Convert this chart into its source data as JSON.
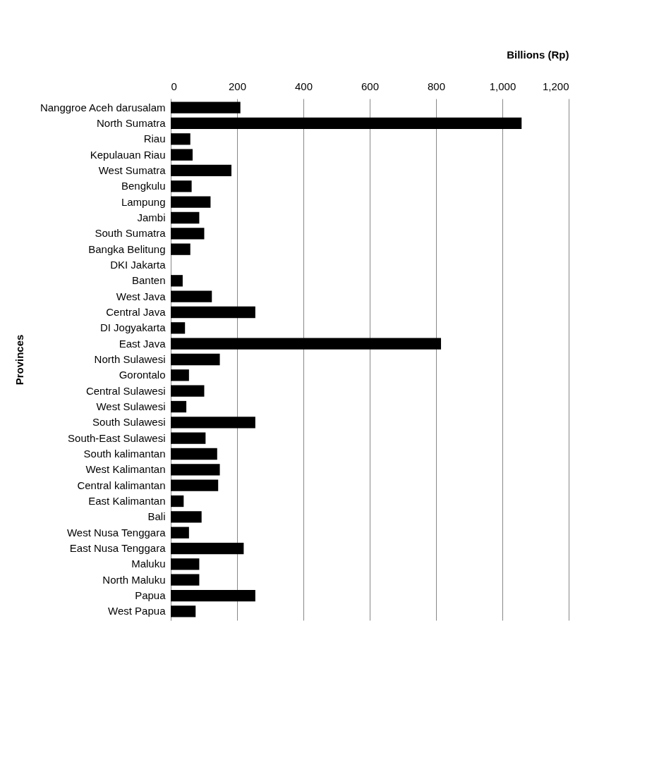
{
  "chart_data": {
    "type": "bar",
    "orientation": "horizontal",
    "xlabel": "Billions (Rp)",
    "ylabel": "Provinces",
    "categories": [
      "Nanggroe Aceh darusalam",
      "North Sumatra",
      "Riau",
      "Kepulauan Riau",
      "West Sumatra",
      "Bengkulu",
      "Lampung",
      "Jambi",
      "South Sumatra",
      "Bangka Belitung",
      "DKI Jakarta",
      "Banten",
      "West Java",
      "Central Java",
      "DI Jogyakarta",
      "East Java",
      "North Sulawesi",
      "Gorontalo",
      "Central Sulawesi",
      "West Sulawesi",
      "South Sulawesi",
      "South-East Sulawesi",
      "South kalimantan",
      "West Kalimantan",
      "Central kalimantan",
      "East Kalimantan",
      "Bali",
      "West Nusa Tenggara",
      "East Nusa Tenggara",
      "Maluku",
      "North Maluku",
      "Papua",
      "West Papua"
    ],
    "values": [
      210,
      1058,
      59,
      66,
      183,
      63,
      120,
      86,
      101,
      59,
      null,
      36,
      124,
      255,
      43,
      815,
      148,
      55,
      101,
      47,
      255,
      105,
      140,
      148,
      143,
      39,
      93,
      55,
      220,
      86,
      86,
      255,
      75
    ],
    "color": "#000000",
    "xlim": [
      0,
      1200
    ],
    "xticks": [
      0,
      200,
      400,
      600,
      {
        "value": 800,
        "label": "800"
      },
      {
        "value": 1000,
        "label": "1,000"
      },
      {
        "value": 1200,
        "label": "1,200"
      }
    ],
    "grid": "x"
  }
}
